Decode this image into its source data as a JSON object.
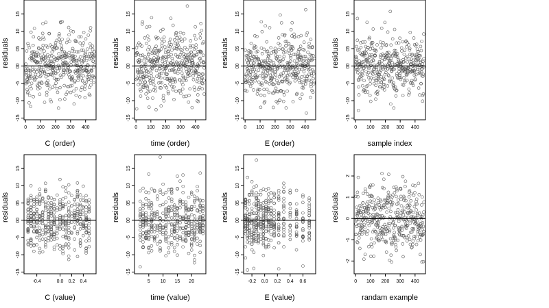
{
  "chart_data": [
    {
      "type": "scatter",
      "xlabel": "C (order)",
      "ylabel": "residuals",
      "xkind": "order",
      "xlim": [
        -10,
        470
      ],
      "ylim": [
        -15.5,
        19
      ],
      "xticks": [
        0,
        100,
        200,
        300,
        400
      ],
      "xticklabels": [
        "0",
        "100",
        "200",
        "300",
        "400"
      ],
      "yticks": [
        -15,
        -10,
        -5,
        0,
        5,
        10,
        15
      ],
      "yticklabels": [
        "-15",
        "-10",
        "-5",
        "00",
        "05",
        "10",
        "15"
      ],
      "hline": 0,
      "grid": false
    },
    {
      "type": "scatter",
      "xlabel": "time (order)",
      "ylabel": "residuals",
      "xkind": "order",
      "xlim": [
        -10,
        470
      ],
      "ylim": [
        -15.5,
        19
      ],
      "xticks": [
        0,
        100,
        200,
        300,
        400
      ],
      "xticklabels": [
        "0",
        "100",
        "200",
        "300",
        "400"
      ],
      "yticks": [
        -15,
        -10,
        -5,
        0,
        5,
        10,
        15
      ],
      "yticklabels": [
        "-15",
        "-10",
        "-5",
        "00",
        "05",
        "10",
        "15"
      ],
      "hline": 0,
      "grid": false
    },
    {
      "type": "scatter",
      "xlabel": "E (order)",
      "ylabel": "residuals",
      "xkind": "order",
      "xlim": [
        -10,
        470
      ],
      "ylim": [
        -15.5,
        19
      ],
      "xticks": [
        0,
        100,
        200,
        300,
        400
      ],
      "xticklabels": [
        "0",
        "100",
        "200",
        "300",
        "400"
      ],
      "yticks": [
        -15,
        -10,
        -5,
        0,
        5,
        10,
        15
      ],
      "yticklabels": [
        "-15",
        "-10",
        "-5",
        "00",
        "05",
        "10",
        "15"
      ],
      "hline": 0,
      "grid": false
    },
    {
      "type": "scatter",
      "xlabel": "sample index",
      "ylabel": "residuals",
      "xkind": "order",
      "xlim": [
        -10,
        470
      ],
      "ylim": [
        -15.5,
        19
      ],
      "xticks": [
        0,
        100,
        200,
        300,
        400
      ],
      "xticklabels": [
        "0",
        "100",
        "200",
        "300",
        "400"
      ],
      "yticks": [
        -15,
        -10,
        -5,
        0,
        5,
        10,
        15
      ],
      "yticklabels": [
        "-15",
        "-10",
        "-5",
        "00",
        "05",
        "10",
        "15"
      ],
      "hline": 0,
      "grid": false
    },
    {
      "type": "scatter",
      "xlabel": "C (value)",
      "ylabel": "residuals",
      "xkind": "discrete",
      "xlim": [
        -0.62,
        0.62
      ],
      "ylim": [
        -15.5,
        19
      ],
      "xticks": [
        -0.4,
        0.0,
        0.2,
        0.4
      ],
      "xticklabels": [
        "-0.4",
        "0.0",
        "0.2",
        "0.4"
      ],
      "yticks": [
        -15,
        -10,
        -5,
        0,
        5,
        10,
        15
      ],
      "yticklabels": [
        "-15",
        "-10",
        "-5",
        "00",
        "05",
        "10",
        "15"
      ],
      "hline": 0,
      "grid": false,
      "x_levels": [
        -0.55,
        -0.5,
        -0.45,
        -0.4,
        -0.35,
        -0.3,
        -0.25,
        -0.2,
        -0.15,
        -0.1,
        -0.05,
        0.0,
        0.05,
        0.1,
        0.15,
        0.2,
        0.25,
        0.3,
        0.35,
        0.4,
        0.45,
        0.5
      ]
    },
    {
      "type": "scatter",
      "xlabel": "time (value)",
      "ylabel": "residuals",
      "xkind": "discrete",
      "xlim": [
        0,
        25
      ],
      "ylim": [
        -15.5,
        19
      ],
      "xticks": [
        5,
        10,
        15,
        20
      ],
      "xticklabels": [
        "5",
        "10",
        "15",
        "20"
      ],
      "yticks": [
        -15,
        -10,
        -5,
        0,
        5,
        10,
        15
      ],
      "yticklabels": [
        "-15",
        "-10",
        "-5",
        "00",
        "05",
        "10",
        "15"
      ],
      "hline": 0,
      "grid": false,
      "x_levels": [
        2,
        3,
        4,
        5,
        6,
        7,
        8,
        9,
        10,
        11,
        12,
        13,
        14,
        15,
        16,
        17,
        18,
        19,
        20,
        21,
        22,
        23,
        24
      ]
    },
    {
      "type": "scatter",
      "xlabel": "E (value)",
      "ylabel": "residuals",
      "xkind": "discrete",
      "xlim": [
        -0.33,
        0.8
      ],
      "ylim": [
        -15.5,
        19
      ],
      "xticks": [
        -0.2,
        0.0,
        0.2,
        0.4,
        0.6
      ],
      "xticklabels": [
        "-0.2",
        "0.0",
        "0.2",
        "0.4",
        "0.6"
      ],
      "yticks": [
        -15,
        -10,
        -5,
        0,
        5,
        10,
        15
      ],
      "yticklabels": [
        "-15",
        "-10",
        "-5",
        "00",
        "05",
        "10",
        "15"
      ],
      "hline": 0,
      "grid": false,
      "x_levels": [
        -0.3,
        -0.27,
        -0.24,
        -0.2,
        -0.17,
        -0.13,
        -0.1,
        -0.06,
        -0.02,
        0.02,
        0.06,
        0.1,
        0.15,
        0.22,
        0.3,
        0.4,
        0.5,
        0.6,
        0.7
      ]
    },
    {
      "type": "scatter",
      "xlabel": "randam example",
      "ylabel": "residuals",
      "xkind": "order",
      "xlim": [
        -10,
        470
      ],
      "ylim": [
        -2.6,
        3.0
      ],
      "xticks": [
        0,
        100,
        200,
        300,
        400
      ],
      "xticklabels": [
        "0",
        "100",
        "200",
        "300",
        "400"
      ],
      "yticks": [
        -2,
        -1,
        0,
        1,
        2
      ],
      "yticklabels": [
        "-2",
        "-1",
        "0",
        "1",
        "2"
      ],
      "hline": 0,
      "grid": false
    }
  ]
}
